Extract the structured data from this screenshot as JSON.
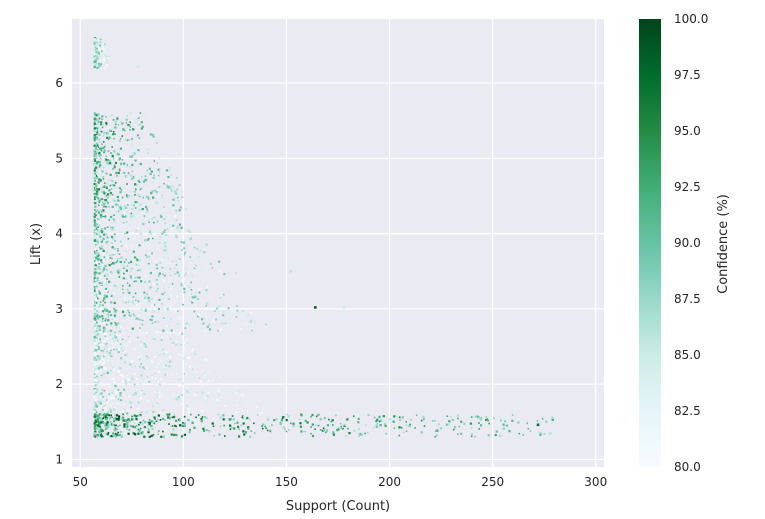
{
  "chart_data": {
    "type": "scatter",
    "title": "",
    "xlabel": "Support (Count)",
    "ylabel": "Lift (x)",
    "xlim": [
      46,
      304
    ],
    "ylim": [
      0.9,
      6.85
    ],
    "x_ticks": [
      "50",
      "100",
      "150",
      "200",
      "250",
      "300"
    ],
    "y_ticks": [
      "1",
      "2",
      "3",
      "4",
      "5",
      "6"
    ],
    "grid": true,
    "background": "#eaeaf2",
    "colorbar": {
      "label": "Confidence (%)",
      "min": 80.0,
      "max": 100.0,
      "ticks": [
        "80.0",
        "82.5",
        "85.0",
        "87.5",
        "90.0",
        "92.5",
        "95.0",
        "97.5",
        "100.0"
      ],
      "colormap": [
        "#f7fcfd",
        "#e5f5f9",
        "#ccece6",
        "#99d8c9",
        "#66c2a4",
        "#41ae76",
        "#238b45",
        "#006d2c",
        "#00441b"
      ]
    },
    "clusters": [
      {
        "lift_min": 6.2,
        "lift_max": 6.6,
        "support_min": 57,
        "support_max": 66,
        "confidence": 88
      },
      {
        "lift_min": 4.3,
        "lift_max": 5.6,
        "support_min": 57,
        "support_max": 105,
        "confidence": 93
      },
      {
        "lift_min": 3.4,
        "lift_max": 4.3,
        "support_min": 57,
        "support_max": 130,
        "confidence": 91
      },
      {
        "lift_min": 2.7,
        "lift_max": 3.4,
        "support_min": 57,
        "support_max": 155,
        "confidence": 90
      },
      {
        "lift_min": 1.6,
        "lift_max": 2.7,
        "support_min": 57,
        "support_max": 140,
        "confidence": 87
      },
      {
        "lift_min": 1.3,
        "lift_max": 1.6,
        "support_min": 57,
        "support_max": 280,
        "confidence": 96
      }
    ],
    "outliers": [
      {
        "x": 164,
        "y": 3.02,
        "confidence": 98
      },
      {
        "x": 178,
        "y": 3.02,
        "confidence": 85
      },
      {
        "x": 152,
        "y": 3.5,
        "confidence": 86
      },
      {
        "x": 272,
        "y": 1.46,
        "confidence": 97
      },
      {
        "x": 278,
        "y": 1.35,
        "confidence": 86
      },
      {
        "x": 258,
        "y": 1.3,
        "confidence": 84
      },
      {
        "x": 78,
        "y": 6.22,
        "confidence": 85
      }
    ]
  }
}
